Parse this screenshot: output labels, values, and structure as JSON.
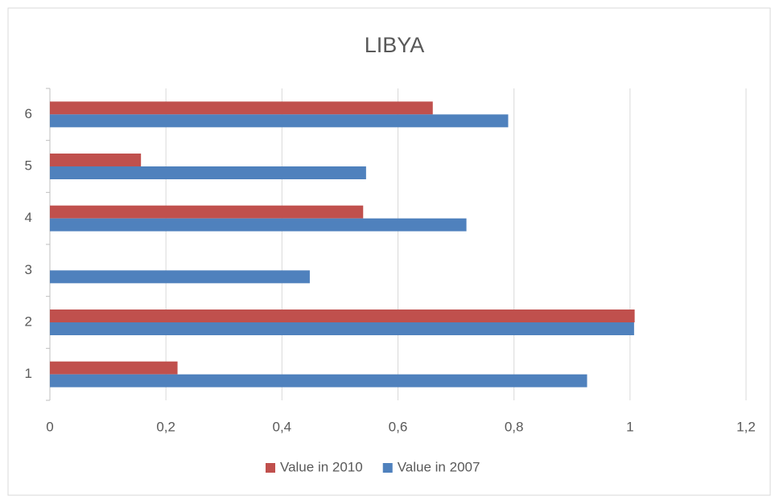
{
  "chart_data": {
    "type": "hbar",
    "title": "LIBYA",
    "categories": [
      "1",
      "2",
      "3",
      "4",
      "5",
      "6"
    ],
    "series": [
      {
        "name": "Value in 2010",
        "color": "#c0504d",
        "values": [
          0.22,
          1.008,
          0,
          0.54,
          0.157,
          0.66
        ]
      },
      {
        "name": "Value in 2007",
        "color": "#4f81bd",
        "values": [
          0.926,
          1.007,
          0.448,
          0.718,
          0.545,
          0.79
        ]
      }
    ],
    "xlim": [
      0,
      1.2
    ],
    "xticks": [
      0,
      {
        "value": 0.2,
        "label": "0,2"
      },
      {
        "value": 0.4,
        "label": "0,4"
      },
      {
        "value": 0.6,
        "label": "0,6"
      },
      {
        "value": 0.8,
        "label": "0,8"
      },
      1,
      {
        "value": 1.2,
        "label": "1,2"
      }
    ],
    "grid": true,
    "legend": "bottom"
  }
}
